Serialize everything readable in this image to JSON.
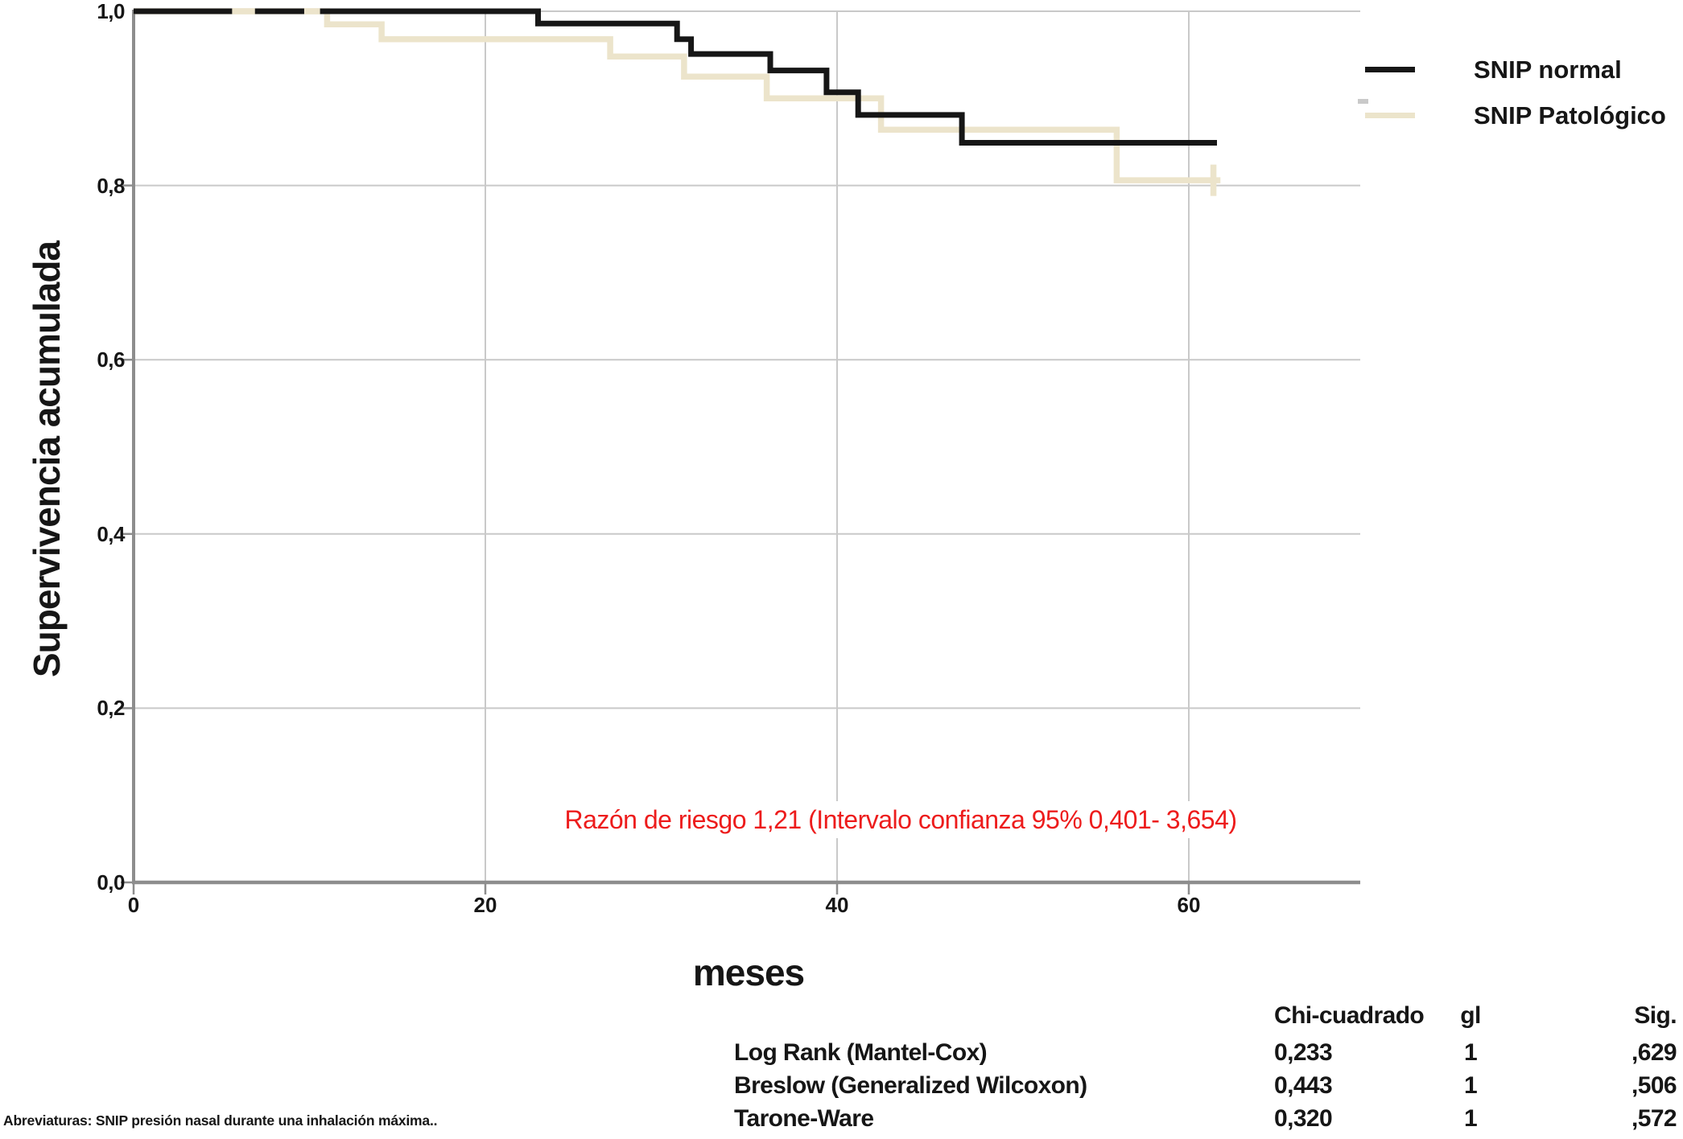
{
  "chart_data": {
    "type": "line",
    "subtype": "kaplan-meier-step",
    "title": "",
    "xlabel": "meses",
    "ylabel": "Supervivencia acumulada",
    "xlim": [
      0,
      69.7
    ],
    "ylim": [
      0,
      1.0
    ],
    "grid": true,
    "legend_position": "top-right",
    "xticks": [
      {
        "value": 0,
        "label": "0"
      },
      {
        "value": 20,
        "label": "20"
      },
      {
        "value": 40,
        "label": "40"
      },
      {
        "value": 60,
        "label": "60"
      }
    ],
    "yticks": [
      {
        "value": 1.0,
        "label": "1,0"
      },
      {
        "value": 0.8,
        "label": "0,8"
      },
      {
        "value": 0.6,
        "label": "0,6"
      },
      {
        "value": 0.4,
        "label": "0,4"
      },
      {
        "value": 0.2,
        "label": "0,2"
      },
      {
        "value": 0.0,
        "label": "0,0"
      }
    ],
    "series": [
      {
        "name": "SNIP Patológico",
        "color": "#ece4cb",
        "stroke_width": 7.5,
        "points": [
          [
            0,
            1.0
          ],
          [
            11.0,
            1.0
          ],
          [
            11.0,
            0.985
          ],
          [
            14.1,
            0.985
          ],
          [
            14.1,
            0.968
          ],
          [
            27.1,
            0.968
          ],
          [
            27.1,
            0.948
          ],
          [
            31.3,
            0.948
          ],
          [
            31.3,
            0.925
          ],
          [
            36.0,
            0.925
          ],
          [
            36.0,
            0.9
          ],
          [
            42.5,
            0.9
          ],
          [
            42.5,
            0.864
          ],
          [
            55.9,
            0.864
          ],
          [
            55.9,
            0.806
          ],
          [
            61.8,
            0.806
          ]
        ]
      },
      {
        "name": "SNIP normal",
        "color": "#161616",
        "stroke_width": 7,
        "points": [
          [
            0,
            1.0
          ],
          [
            23.0,
            1.0
          ],
          [
            23.0,
            0.986
          ],
          [
            30.9,
            0.986
          ],
          [
            30.9,
            0.968
          ],
          [
            31.7,
            0.968
          ],
          [
            31.7,
            0.951
          ],
          [
            36.2,
            0.951
          ],
          [
            36.2,
            0.932
          ],
          [
            39.4,
            0.932
          ],
          [
            39.4,
            0.907
          ],
          [
            41.2,
            0.907
          ],
          [
            41.2,
            0.881
          ],
          [
            47.1,
            0.881
          ],
          [
            47.1,
            0.849
          ],
          [
            61.6,
            0.849
          ]
        ]
      }
    ],
    "censor_overlap_dashes": [
      {
        "x_from": 5.6,
        "x_to": 6.9,
        "y": 1.0
      },
      {
        "x_from": 9.7,
        "x_to": 10.6,
        "y": 1.0
      }
    ],
    "end_censor_tick": {
      "x": 61.4,
      "y_from": 0.824,
      "y_to": 0.788
    },
    "colors": {
      "grid": "#c9c9c9",
      "axis": "#8d8d8d",
      "normal_curve": "#161616",
      "patologico_curve": "#ece4cb"
    }
  },
  "legend": {
    "entries": [
      {
        "label": "SNIP normal",
        "color": "#161616"
      },
      {
        "label": "SNIP Patológico",
        "color": "#ece4cb"
      }
    ]
  },
  "annotation": {
    "text": "Razón de riesgo 1,21 (Intervalo confianza 95% 0,401- 3,654)",
    "color": "#ed1c1c"
  },
  "stats_table": {
    "headers": {
      "chi": "Chi-cuadrado",
      "gl": "gl",
      "sig": "Sig."
    },
    "rows": [
      {
        "label": "Log Rank (Mantel-Cox)",
        "chi": "0,233",
        "gl": "1",
        "sig": ",629"
      },
      {
        "label": "Breslow (Generalized Wilcoxon)",
        "chi": "0,443",
        "gl": "1",
        "sig": ",506"
      },
      {
        "label": "Tarone-Ware",
        "chi": "0,320",
        "gl": "1",
        "sig": ",572"
      }
    ]
  },
  "footnote": {
    "text": "Abreviaturas: SNIP presión nasal durante una inhalación máxima.."
  }
}
